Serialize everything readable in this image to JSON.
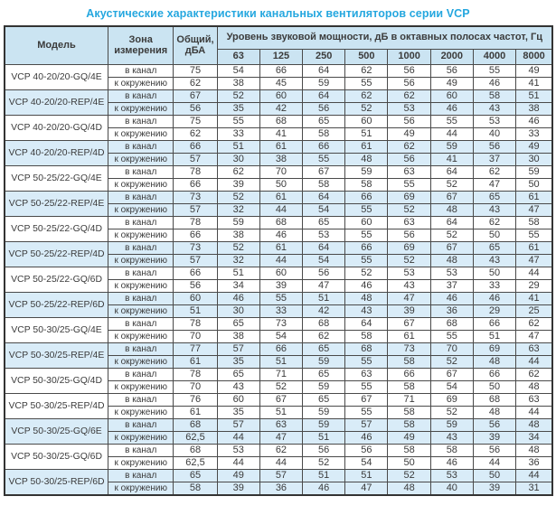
{
  "title": "Акустические характеристики канальных вентиляторов  серии VCP",
  "colors": {
    "title": "#25a7df",
    "header_bg": "#cbe4f2",
    "row_tint_bg": "#d9ecf8",
    "border": "#4a4a4a",
    "text": "#3b3b3b"
  },
  "table": {
    "headers": {
      "model": "Модель",
      "zone": "Зона измерения",
      "total": "Общий, дБА",
      "spl_group": "Уровень звуковой мощности, дБ в октавных полосах частот, Гц",
      "frequencies": [
        "63",
        "125",
        "250",
        "500",
        "1000",
        "2000",
        "4000",
        "8000"
      ]
    },
    "zone_labels": {
      "duct": "в канал",
      "ambient": "к окружению"
    },
    "rows": [
      {
        "model": "VCP 40-20/20-GQ/4E",
        "tint": false,
        "duct_total": "75",
        "duct": [
          54,
          66,
          64,
          62,
          56,
          56,
          55,
          49
        ],
        "ambient_total": "62",
        "ambient": [
          38,
          45,
          59,
          55,
          56,
          49,
          46,
          41
        ]
      },
      {
        "model": "VCP 40-20/20-REP/4E",
        "tint": true,
        "duct_total": "67",
        "duct": [
          52,
          60,
          64,
          62,
          62,
          60,
          58,
          51
        ],
        "ambient_total": "56",
        "ambient": [
          35,
          42,
          56,
          52,
          53,
          46,
          43,
          38
        ]
      },
      {
        "model": "VCP 40-20/20-GQ/4D",
        "tint": false,
        "duct_total": "75",
        "duct": [
          55,
          68,
          65,
          60,
          56,
          55,
          53,
          46
        ],
        "ambient_total": "62",
        "ambient": [
          33,
          41,
          58,
          51,
          49,
          44,
          40,
          33
        ]
      },
      {
        "model": "VCP 40-20/20-REP/4D",
        "tint": true,
        "duct_total": "66",
        "duct": [
          51,
          61,
          66,
          61,
          62,
          59,
          56,
          49
        ],
        "ambient_total": "57",
        "ambient": [
          30,
          38,
          55,
          48,
          56,
          41,
          37,
          30
        ]
      },
      {
        "model": "VCP 50-25/22-GQ/4E",
        "tint": false,
        "duct_total": "78",
        "duct": [
          62,
          70,
          67,
          59,
          63,
          64,
          62,
          59
        ],
        "ambient_total": "66",
        "ambient": [
          39,
          50,
          58,
          58,
          55,
          52,
          47,
          50
        ]
      },
      {
        "model": "VCP 50-25/22-REP/4E",
        "tint": true,
        "duct_total": "73",
        "duct": [
          52,
          61,
          64,
          66,
          69,
          67,
          65,
          61
        ],
        "ambient_total": "57",
        "ambient": [
          32,
          44,
          54,
          55,
          52,
          48,
          43,
          47
        ]
      },
      {
        "model": "VCP 50-25/22-GQ/4D",
        "tint": false,
        "duct_total": "78",
        "duct": [
          59,
          68,
          65,
          60,
          63,
          64,
          62,
          58
        ],
        "ambient_total": "66",
        "ambient": [
          38,
          46,
          53,
          55,
          56,
          52,
          50,
          55
        ]
      },
      {
        "model": "VCP 50-25/22-REP/4D",
        "tint": true,
        "duct_total": "73",
        "duct": [
          52,
          61,
          64,
          66,
          69,
          67,
          65,
          61
        ],
        "ambient_total": "57",
        "ambient": [
          32,
          44,
          54,
          55,
          52,
          48,
          43,
          47
        ]
      },
      {
        "model": "VCP 50-25/22-GQ/6D",
        "tint": false,
        "duct_total": "66",
        "duct": [
          51,
          60,
          56,
          52,
          53,
          53,
          50,
          44
        ],
        "ambient_total": "56",
        "ambient": [
          34,
          39,
          47,
          46,
          43,
          37,
          33,
          29
        ]
      },
      {
        "model": "VCP 50-25/22-REP/6D",
        "tint": true,
        "duct_total": "60",
        "duct": [
          46,
          55,
          51,
          48,
          47,
          46,
          46,
          41
        ],
        "ambient_total": "51",
        "ambient": [
          30,
          33,
          42,
          43,
          39,
          36,
          29,
          25
        ]
      },
      {
        "model": "VCP 50-30/25-GQ/4E",
        "tint": false,
        "duct_total": "78",
        "duct": [
          65,
          73,
          68,
          64,
          67,
          68,
          66,
          62
        ],
        "ambient_total": "70",
        "ambient": [
          38,
          54,
          62,
          58,
          61,
          55,
          51,
          47
        ]
      },
      {
        "model": "VCP 50-30/25-REP/4E",
        "tint": true,
        "duct_total": "77",
        "duct": [
          57,
          66,
          65,
          68,
          73,
          70,
          69,
          63
        ],
        "ambient_total": "61",
        "ambient": [
          35,
          51,
          59,
          55,
          58,
          52,
          48,
          44
        ]
      },
      {
        "model": "VCP 50-30/25-GQ/4D",
        "tint": false,
        "duct_total": "78",
        "duct": [
          65,
          71,
          65,
          63,
          66,
          67,
          66,
          62
        ],
        "ambient_total": "70",
        "ambient": [
          43,
          52,
          59,
          55,
          58,
          54,
          50,
          48
        ]
      },
      {
        "model": "VCP 50-30/25-REP/4D",
        "tint": false,
        "duct_total": "76",
        "duct": [
          60,
          67,
          65,
          67,
          71,
          69,
          68,
          63
        ],
        "ambient_total": "61",
        "ambient": [
          35,
          51,
          59,
          55,
          58,
          52,
          48,
          44
        ]
      },
      {
        "model": "VCP 50-30/25-GQ/6E",
        "tint": true,
        "duct_total": "68",
        "duct": [
          57,
          63,
          59,
          57,
          58,
          59,
          56,
          48
        ],
        "ambient_total": "62,5",
        "ambient": [
          44,
          47,
          51,
          46,
          49,
          43,
          39,
          34
        ]
      },
      {
        "model": "VCP 50-30/25-GQ/6D",
        "tint": false,
        "duct_total": "68",
        "duct": [
          53,
          62,
          56,
          56,
          58,
          58,
          56,
          48
        ],
        "ambient_total": "62,5",
        "ambient": [
          44,
          44,
          52,
          54,
          50,
          46,
          44,
          36
        ]
      },
      {
        "model": "VCP 50-30/25-REP/6D",
        "tint": true,
        "duct_total": "65",
        "duct": [
          49,
          57,
          51,
          51,
          52,
          53,
          50,
          44
        ],
        "ambient_total": "58",
        "ambient": [
          39,
          36,
          46,
          47,
          48,
          40,
          39,
          31
        ]
      }
    ]
  }
}
